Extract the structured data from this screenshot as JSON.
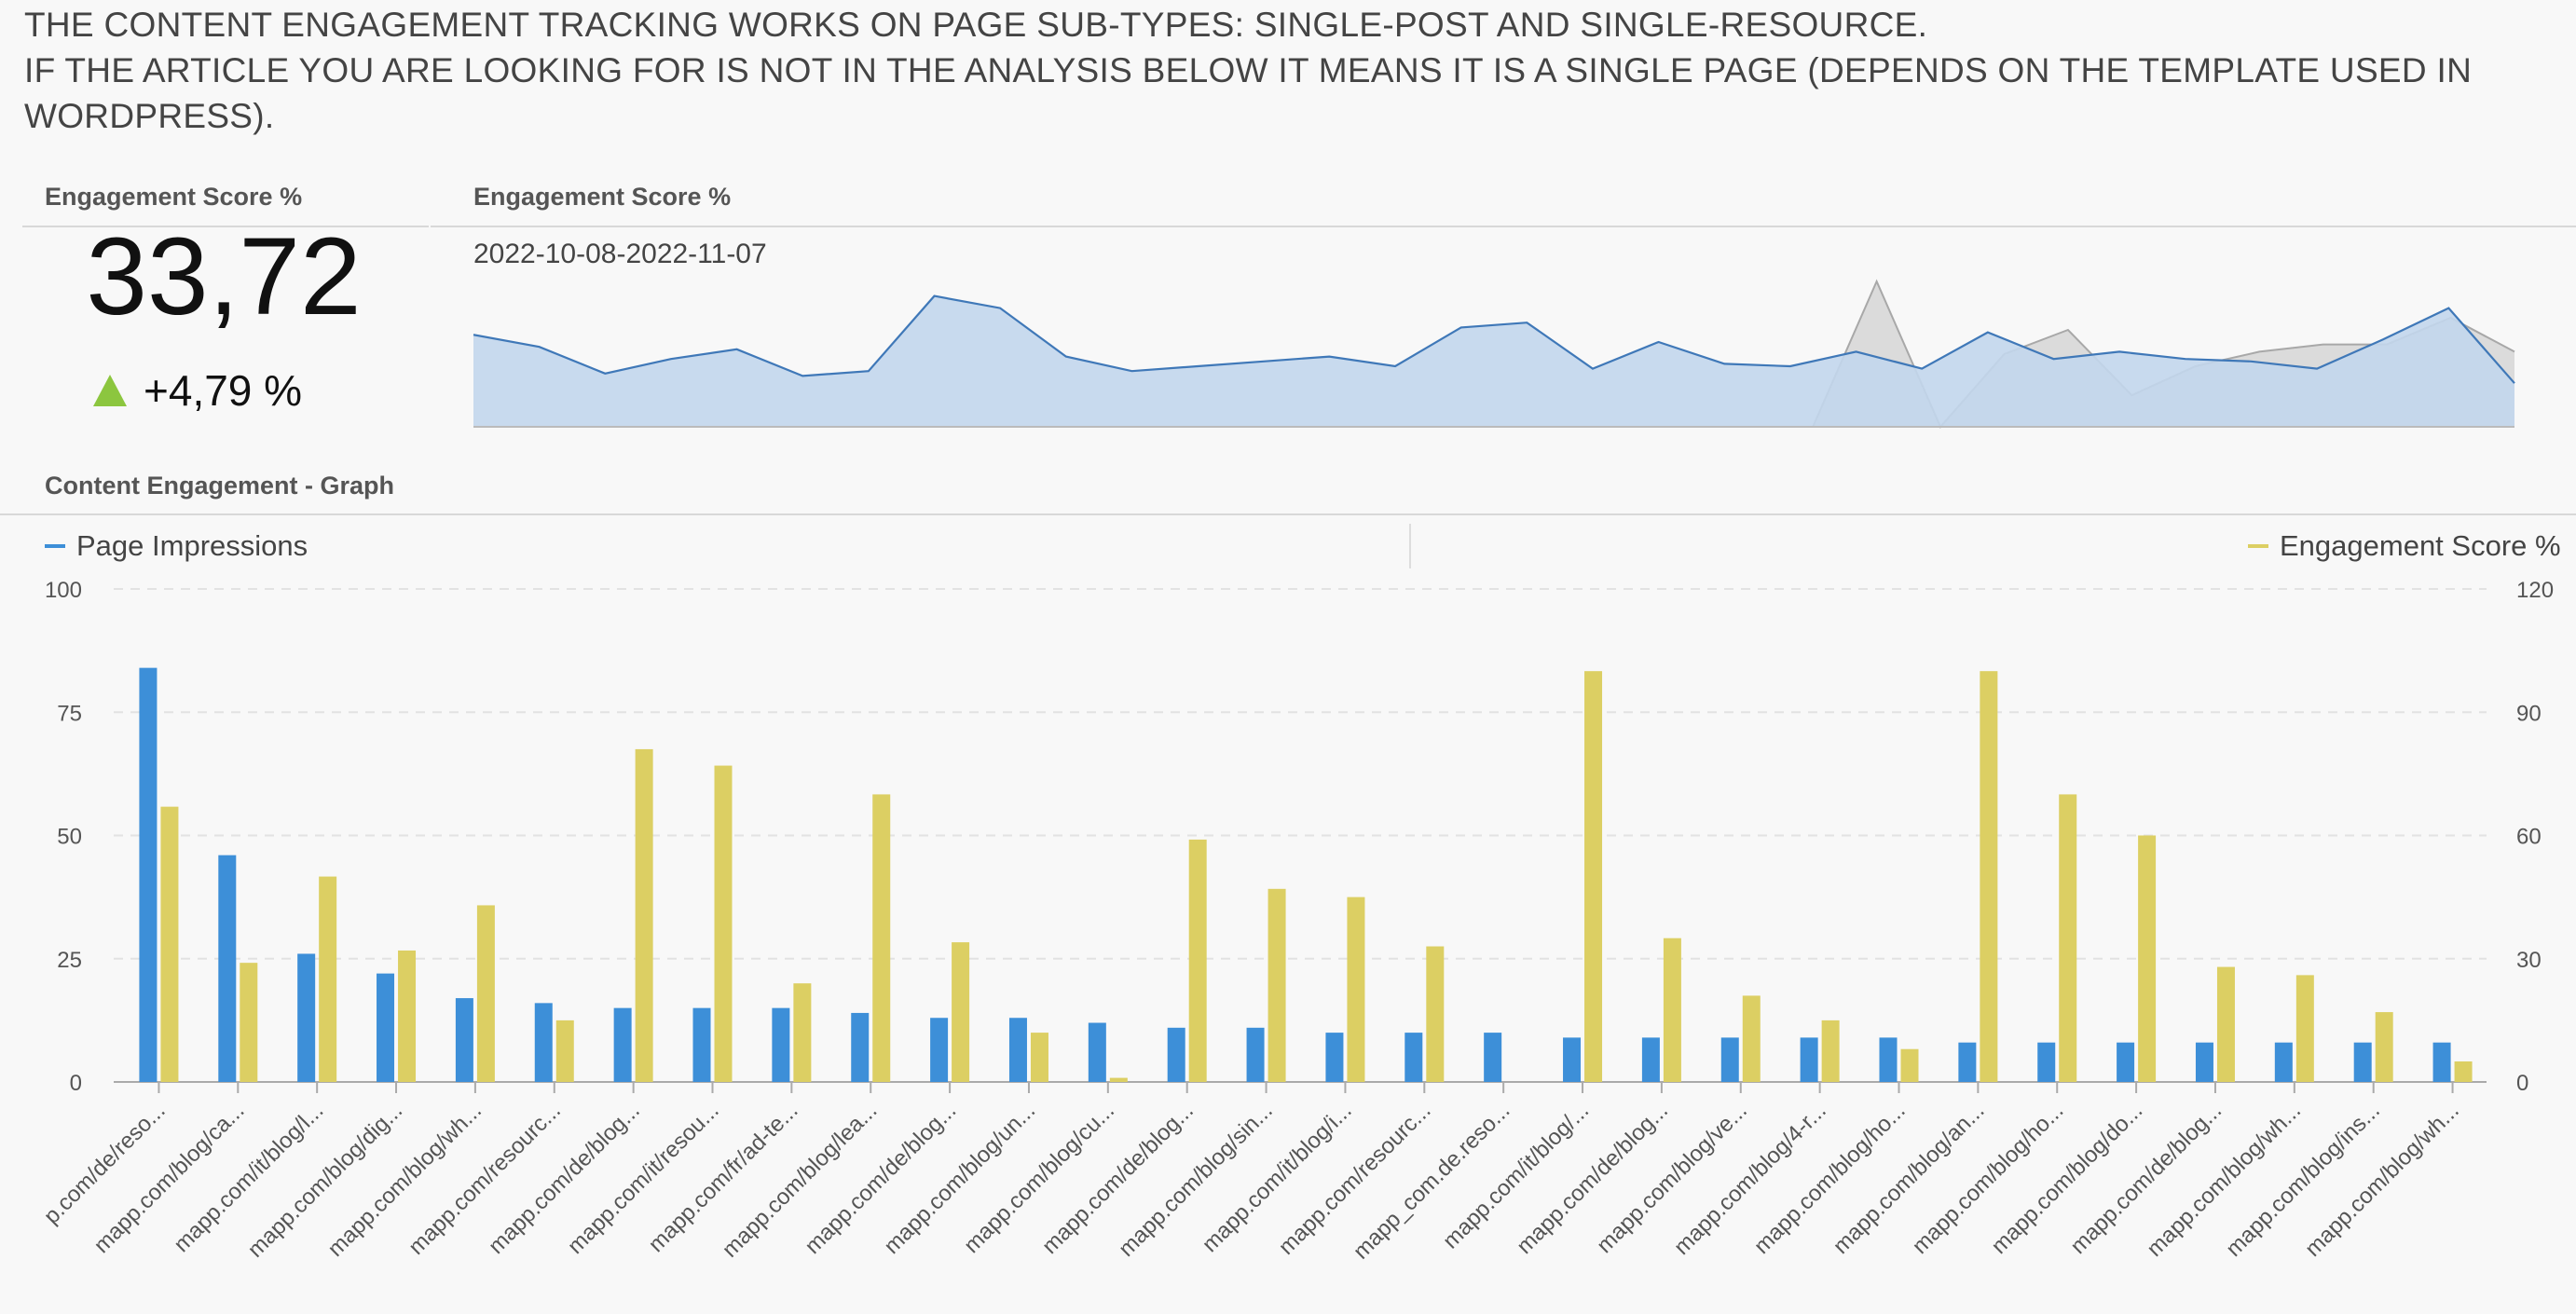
{
  "notice": {
    "line1": "THE CONTENT ENGAGEMENT TRACKING WORKS ON PAGE SUB-TYPES: SINGLE-POST AND SINGLE-RESOURCE.",
    "line2": "IF THE ARTICLE YOU ARE LOOKING FOR IS NOT IN THE ANALYSIS BELOW IT MEANS IT IS A SINGLE PAGE (DEPENDS ON THE TEMPLATE USED IN",
    "line3": "WORDPRESS)."
  },
  "kpi": {
    "title": "Engagement Score %",
    "value": "33,72",
    "delta": "+4,79 %",
    "delta_color": "#8cc63f"
  },
  "trend": {
    "title": "Engagement Score %",
    "date_range": "2022-10-08-2022-11-07"
  },
  "graph": {
    "title": "Content Engagement - Graph",
    "legend_left": "Page Impressions",
    "legend_right": "Engagement Score %"
  },
  "colors": {
    "impressions": "#3d8fd8",
    "engagement": "#dccf63",
    "area_fill": "#c2d6ec",
    "area_line": "#3f78b8",
    "compare_fill": "#b9b9b9",
    "compare_line": "#a8a8a8"
  },
  "chart_data": [
    {
      "type": "area",
      "title": "Engagement Score %",
      "subtitle": "2022-10-08-2022-11-07",
      "series": [
        {
          "values": [
            38,
            33,
            22,
            28,
            32,
            21,
            23,
            54,
            49,
            29,
            23,
            25,
            27,
            29,
            25,
            41,
            43,
            24,
            35,
            26,
            25,
            31,
            24,
            39,
            28,
            31,
            28,
            27,
            24,
            36,
            49,
            18
          ]
        },
        {
          "values": [
            0,
            0,
            0,
            0,
            0,
            0,
            0,
            0,
            0,
            0,
            0,
            0,
            0,
            0,
            0,
            0,
            0,
            0,
            0,
            0,
            0,
            0,
            60,
            0,
            30,
            40,
            13,
            25,
            31,
            34,
            34,
            45,
            31
          ]
        }
      ]
    },
    {
      "type": "bar",
      "title": "Content Engagement - Graph",
      "categories": [
        "p.com/de/reso...",
        "mapp.com/blog/ca...",
        "mapp.com/it/blog/l...",
        "mapp.com/blog/dig...",
        "mapp.com/blog/wh...",
        "mapp.com/resourc...",
        "mapp.com/de/blog...",
        "mapp.com/it/resou...",
        "mapp.com/fr/ad-te...",
        "mapp.com/blog/lea...",
        "mapp.com/de/blog...",
        "mapp.com/blog/un...",
        "mapp.com/blog/cu...",
        "mapp.com/de/blog...",
        "mapp.com/blog/sin...",
        "mapp.com/it/blog/i...",
        "mapp.com/resourc...",
        "mapp_com.de.reso...",
        "mapp.com/it/blog/...",
        "mapp.com/de/blog...",
        "mapp.com/blog/ve...",
        "mapp.com/blog/4-r...",
        "mapp.com/blog/ho...",
        "mapp.com/blog/an...",
        "mapp.com/blog/ho...",
        "mapp.com/blog/do...",
        "mapp.com/de/blog...",
        "mapp.com/blog/wh...",
        "mapp.com/blog/ins...",
        "mapp.com/blog/wh..."
      ],
      "series": [
        {
          "name": "Page Impressions",
          "axis": "left",
          "values": [
            84,
            46,
            26,
            22,
            17,
            16,
            15,
            15,
            15,
            14,
            13,
            13,
            12,
            11,
            11,
            10,
            10,
            10,
            9,
            9,
            9,
            9,
            9,
            8,
            8,
            8,
            8,
            8,
            8,
            8
          ]
        },
        {
          "name": "Engagement Score %",
          "axis": "right",
          "values": [
            67,
            29,
            50,
            32,
            43,
            15,
            81,
            77,
            24,
            70,
            34,
            12,
            1,
            59,
            47,
            45,
            33,
            0,
            100,
            35,
            21,
            15,
            8,
            100,
            70,
            60,
            28,
            26,
            17,
            5
          ]
        }
      ],
      "y_left": {
        "ticks": [
          0,
          25,
          50,
          75,
          100
        ],
        "ylim": [
          0,
          100
        ]
      },
      "y_right": {
        "ticks": [
          0,
          30,
          60,
          90,
          120
        ],
        "ylim": [
          0,
          120
        ]
      },
      "grid": true,
      "legend": "top"
    }
  ]
}
